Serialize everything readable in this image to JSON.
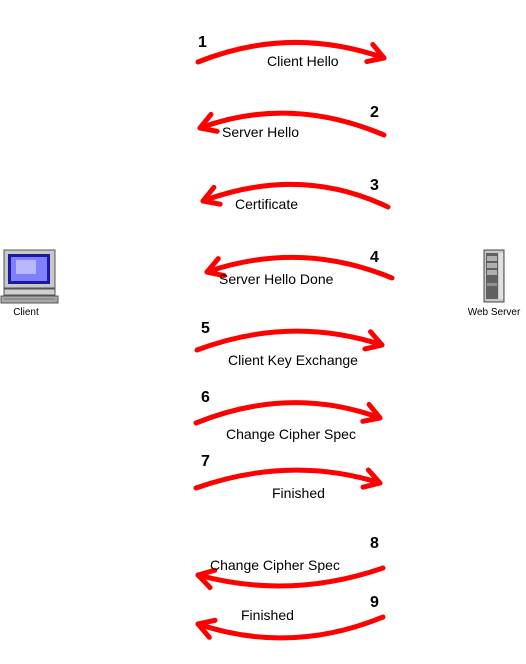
{
  "nodes": {
    "client": {
      "label": "Client"
    },
    "server": {
      "label": "Web Server"
    }
  },
  "colors": {
    "arrow": "#ff0000"
  },
  "steps": [
    {
      "num": "1",
      "label": "Client Hello",
      "direction": "right"
    },
    {
      "num": "2",
      "label": "Server Hello",
      "direction": "left"
    },
    {
      "num": "3",
      "label": "Certificate",
      "direction": "left"
    },
    {
      "num": "4",
      "label": "Server Hello Done",
      "direction": "left"
    },
    {
      "num": "5",
      "label": "Client Key Exchange",
      "direction": "right"
    },
    {
      "num": "6",
      "label": "Change Cipher Spec",
      "direction": "right"
    },
    {
      "num": "7",
      "label": "Finished",
      "direction": "right"
    },
    {
      "num": "8",
      "label": "Change Cipher Spec",
      "direction": "left"
    },
    {
      "num": "9",
      "label": "Finished",
      "direction": "left"
    }
  ]
}
